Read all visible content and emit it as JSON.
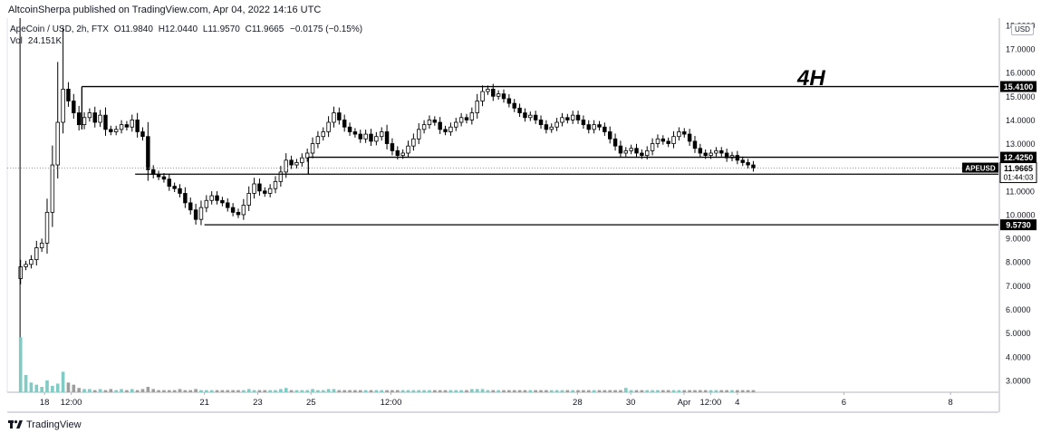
{
  "header": {
    "publisher": "AltcoinSherpa published on TradingView.com, Apr 04, 2022 14:16 UTC"
  },
  "legend": {
    "symbol": "ApeCoin / USD, 2h, FTX",
    "ohlc": [
      {
        "label": "O",
        "value": "11.9840"
      },
      {
        "label": "H",
        "value": "12.0440"
      },
      {
        "label": "L",
        "value": "11.9570"
      },
      {
        "label": "C",
        "value": "11.9665"
      }
    ],
    "change": "−0.0175 (−0.15%)",
    "volume_label": "Vol",
    "volume_value": "24.151K"
  },
  "branding": {
    "logo_text": "TradingView"
  },
  "colors": {
    "up_candle": "#ffffff",
    "down_candle": "#000000",
    "candle_border": "#000000",
    "volume_up": "#80cbc4",
    "volume_down": "#9e9e9e",
    "level_line": "#000000",
    "price_tag_bg": "#000000",
    "price_tag_text": "#ffffff",
    "grid": "#f0f3fa"
  },
  "chart_data": {
    "type": "candlestick",
    "title": "",
    "annotation": "4H",
    "currency": "USD",
    "symbol_tag": "APEUSD",
    "last_price": "11.9665",
    "countdown": "01:44:03",
    "x_tick_labels": [
      "18",
      "12:00",
      "21",
      "23",
      "25",
      "12:00",
      "28",
      "30",
      "Apr",
      "12:00",
      "4",
      "6",
      "8"
    ],
    "x_tick_positions_days": [
      18,
      18.5,
      21,
      22,
      23,
      24.5,
      28,
      29,
      30,
      30.5,
      31,
      33,
      35
    ],
    "y_tick_labels": [
      "3.0000",
      "4.0000",
      "5.0000",
      "6.0000",
      "7.0000",
      "8.0000",
      "9.0000",
      "10.0000",
      "11.0000",
      "12.0000",
      "13.0000",
      "14.0000",
      "15.0000",
      "16.0000",
      "17.0000",
      "18.0000"
    ],
    "ylim": [
      2.5,
      18.3
    ],
    "grid": false,
    "horizontal_levels": [
      {
        "label": "15.4100",
        "value": 15.41,
        "start_day": 18.7
      },
      {
        "label": "12.4250",
        "value": 12.425,
        "start_day": 22.95
      },
      {
        "label": "11.7100",
        "value": 11.71,
        "start_day": 19.7
      },
      {
        "label": "9.5730",
        "value": 9.573,
        "start_day": 21.0
      }
    ],
    "close_series": [
      7.8,
      7.9,
      8.1,
      8.6,
      8.8,
      10.1,
      12.1,
      13.9,
      15.3,
      14.8,
      14.3,
      13.8,
      14.1,
      14.3,
      13.9,
      14.2,
      13.6,
      13.5,
      13.6,
      13.8,
      13.7,
      14.0,
      13.5,
      13.3,
      11.9,
      11.7,
      11.6,
      11.5,
      11.2,
      11.1,
      10.9,
      10.5,
      10.2,
      9.8,
      10.3,
      10.6,
      10.8,
      10.6,
      10.5,
      10.3,
      10.1,
      10.0,
      10.4,
      10.9,
      11.3,
      11.0,
      10.9,
      11.1,
      11.4,
      11.8,
      12.3,
      12.1,
      12.2,
      12.4,
      12.6,
      13.0,
      13.3,
      13.5,
      13.9,
      14.3,
      14.0,
      13.7,
      13.5,
      13.4,
      13.2,
      13.4,
      13.1,
      13.3,
      13.5,
      13.0,
      12.7,
      12.5,
      12.6,
      12.9,
      13.2,
      13.6,
      13.8,
      14.0,
      13.9,
      13.6,
      13.5,
      13.7,
      13.9,
      14.1,
      14.0,
      14.3,
      14.8,
      15.2,
      15.3,
      15.0,
      15.1,
      14.9,
      14.7,
      14.5,
      14.3,
      14.1,
      14.2,
      14.0,
      13.8,
      13.6,
      13.7,
      13.9,
      14.1,
      14.0,
      14.2,
      14.0,
      13.8,
      13.6,
      13.8,
      13.7,
      13.5,
      13.2,
      12.9,
      12.6,
      12.7,
      12.8,
      12.6,
      12.5,
      12.7,
      13.0,
      13.2,
      13.1,
      13.0,
      13.3,
      13.5,
      13.4,
      13.1,
      12.8,
      12.6,
      12.5,
      12.6,
      12.7,
      12.6,
      12.4,
      12.5,
      12.3,
      12.2,
      12.1,
      11.97
    ],
    "volume_series": [
      5.1,
      1.6,
      0.9,
      0.7,
      0.5,
      1.1,
      0.6,
      0.8,
      1.9,
      0.9,
      0.7,
      0.4,
      0.3,
      0.3,
      0.2,
      0.3,
      0.2,
      0.3,
      0.2,
      0.3,
      0.2,
      0.3,
      0.2,
      0.3,
      0.5,
      0.3,
      0.2,
      0.2,
      0.2,
      0.2,
      0.3,
      0.2,
      0.2,
      0.3,
      0.2,
      0.2,
      0.2,
      0.2,
      0.2,
      0.2,
      0.2,
      0.2,
      0.2,
      0.3,
      0.2,
      0.2,
      0.2,
      0.2,
      0.2,
      0.3,
      0.4,
      0.2,
      0.2,
      0.2,
      0.2,
      0.3,
      0.2,
      0.2,
      0.3,
      0.3,
      0.2,
      0.2,
      0.2,
      0.2,
      0.2,
      0.2,
      0.2,
      0.2,
      0.2,
      0.2,
      0.2,
      0.2,
      0.2,
      0.2,
      0.2,
      0.2,
      0.2,
      0.2,
      0.2,
      0.2,
      0.2,
      0.2,
      0.2,
      0.2,
      0.2,
      0.3,
      0.3,
      0.3,
      0.2,
      0.2,
      0.2,
      0.2,
      0.2,
      0.2,
      0.2,
      0.2,
      0.2,
      0.2,
      0.2,
      0.2,
      0.2,
      0.2,
      0.2,
      0.2,
      0.2,
      0.2,
      0.2,
      0.2,
      0.2,
      0.2,
      0.2,
      0.2,
      0.2,
      0.2,
      0.4,
      0.2,
      0.2,
      0.2,
      0.2,
      0.2,
      0.2,
      0.2,
      0.2,
      0.2,
      0.2,
      0.2,
      0.2,
      0.2,
      0.2,
      0.2,
      0.2,
      0.2,
      0.2,
      0.2,
      0.2,
      0.2,
      0.2,
      0.2,
      0.2
    ]
  }
}
